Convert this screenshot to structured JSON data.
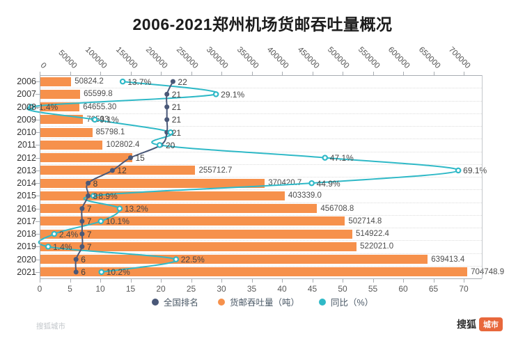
{
  "title": "2006-2021郑州机场货邮吞吐量概况",
  "legend": {
    "items": [
      {
        "label": "全国排名",
        "color": "#4A5878"
      },
      {
        "label": "货邮吞吐量（吨）",
        "color": "#F6914C"
      },
      {
        "label": "同比（%）",
        "color": "#2FB9C7"
      }
    ]
  },
  "watermark": "搜狐城市",
  "logo": {
    "brand": "搜狐",
    "badge": "城市",
    "badge_color": "#E8683C"
  },
  "chart_data": {
    "type": "bar",
    "orientation": "horizontal",
    "title": "2006-2021郑州机场货邮吞吐量概况",
    "categories": [
      "2006",
      "2007",
      "2008",
      "2009",
      "2010",
      "2011",
      "2012",
      "2013",
      "2014",
      "2015",
      "2016",
      "2017",
      "2018",
      "2019",
      "2020",
      "2021"
    ],
    "series": [
      {
        "name": "货邮吞吐量（吨）",
        "type": "bar",
        "color": "#F6914C",
        "axis": "top",
        "values": [
          50824.2,
          65599.8,
          64655.3,
          70533,
          85798.1,
          102802.4,
          151195,
          255712.7,
          370420.7,
          403339.0,
          456708.8,
          502714.8,
          514922.4,
          522021.0,
          639413.4,
          704748.9
        ],
        "labels": [
          "50824.2",
          "65599.8",
          "64655.30",
          "70533",
          "85798.1",
          "102802.4",
          "",
          "255712.7",
          "370420.7",
          "403339.0",
          "456708.8",
          "502714.8",
          "514922.4",
          "522021.0",
          "639413.4",
          "704748.9"
        ]
      },
      {
        "name": "全国排名",
        "type": "line",
        "color": "#4A5878",
        "axis": "bottom",
        "values": [
          22,
          21,
          21,
          21,
          21,
          20,
          15,
          12,
          8,
          8,
          7,
          7,
          7,
          7,
          6,
          6
        ],
        "labels": [
          "22",
          "21",
          "21",
          "21",
          "21",
          "20",
          "15",
          "12",
          "8",
          "8",
          "7",
          "7",
          "7",
          "7",
          "6",
          "6"
        ]
      },
      {
        "name": "同比（%）",
        "type": "line",
        "color": "#2FB9C7",
        "axis": "bottom",
        "values": [
          13.7,
          29.1,
          -1.4,
          9.1,
          21.6,
          19.8,
          47.1,
          69.1,
          44.9,
          8.9,
          13.2,
          10.1,
          2.4,
          1.4,
          22.5,
          10.2
        ],
        "labels": [
          "13.7%",
          "29.1%",
          "-1.4%",
          "9.1%",
          "",
          "",
          "47.1%",
          "69.1%",
          "44.9%",
          "8.9%",
          "13.2%",
          "10.1%",
          "2.4%",
          "1.4%",
          "22.5%",
          "10.2%"
        ]
      }
    ],
    "x_axis_top": {
      "min": 0,
      "max": 700000,
      "step": 50000,
      "ticks": [
        "0",
        "50000",
        "100000",
        "150000",
        "200000",
        "250000",
        "300000",
        "350000",
        "400000",
        "450000",
        "500000",
        "550000",
        "600000",
        "650000",
        "700000"
      ]
    },
    "x_axis_bottom": {
      "min": 0,
      "max": 70,
      "step": 5,
      "ticks": [
        "0",
        "5",
        "10",
        "15",
        "20",
        "25",
        "30",
        "35",
        "40",
        "45",
        "50",
        "55",
        "60",
        "65",
        "70"
      ]
    },
    "grid": "horizontal-dotted",
    "legend_position": "bottom"
  }
}
